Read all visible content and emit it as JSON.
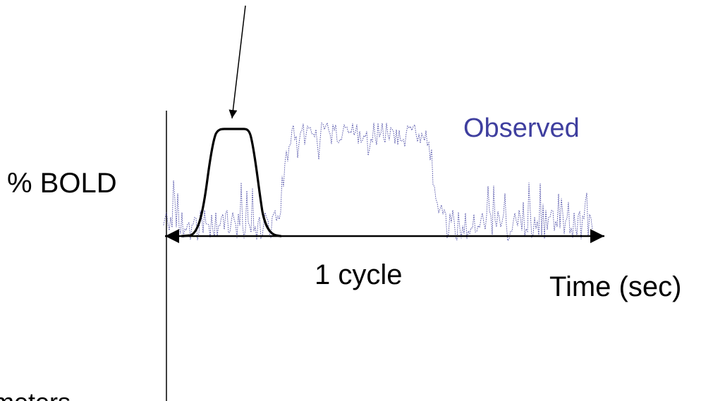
{
  "labels": {
    "y_axis": "% BOLD",
    "observed": "Observed",
    "cycle": "1 cycle",
    "x_axis": "Time (sec)",
    "parameters": "ameters"
  },
  "colors": {
    "observed": "#3f3f9f",
    "model": "#000000",
    "axis": "#000000",
    "background": "#ffffff"
  }
}
